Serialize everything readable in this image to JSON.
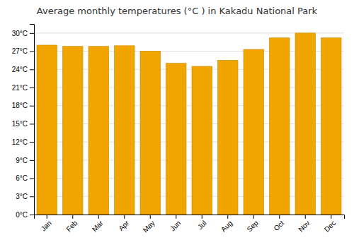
{
  "chart_data": {
    "type": "bar",
    "title": "Average monthly temperatures (°C ) in Kakadu National Park",
    "categories": [
      "Jan",
      "Feb",
      "Mar",
      "Apr",
      "May",
      "Jun",
      "Jul",
      "Aug",
      "Sep",
      "Oct",
      "Nov",
      "Dec"
    ],
    "values": [
      28.0,
      27.8,
      27.8,
      27.9,
      27.0,
      25.0,
      24.5,
      25.5,
      27.3,
      29.2,
      30.0,
      29.2
    ],
    "color": "#F0A500",
    "ylim": [
      0,
      31.5
    ],
    "yticks": [
      {
        "value": 0,
        "label": "0°C"
      },
      {
        "value": 3,
        "label": "3°C"
      },
      {
        "value": 6,
        "label": "6°C"
      },
      {
        "value": 9,
        "label": "9°C"
      },
      {
        "value": 12,
        "label": "12°C"
      },
      {
        "value": 15,
        "label": "15°C"
      },
      {
        "value": 18,
        "label": "18°C"
      },
      {
        "value": 21,
        "label": "21°C"
      },
      {
        "value": 24,
        "label": "24°C"
      },
      {
        "value": 27,
        "label": "27°C"
      },
      {
        "value": 30,
        "label": "30°C"
      }
    ],
    "grid": true
  }
}
